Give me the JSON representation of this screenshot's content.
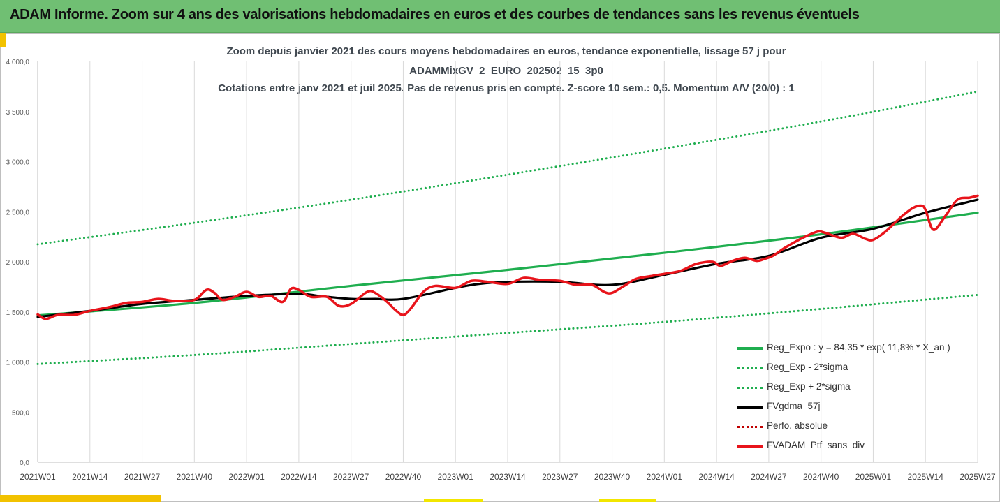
{
  "header": {
    "title": "ADAM Informe. Zoom sur 4 ans des valorisations hebdomadaires en euros et des courbes de tendances sans les revenus éventuels"
  },
  "colors": {
    "header_bg": "#70bf73",
    "regression": "#1fae4f",
    "band": "#1fae4f",
    "moving_average": "#000000",
    "portfolio": "#e8141b",
    "perf_absolue": "#c00000",
    "accent": "#f2c200"
  },
  "chart_data": {
    "type": "line",
    "title_lines": [
      "Zoom depuis janvier 2021 des cours moyens hebdomadaires  en euros, tendance exponentielle, lissage 57 j pour",
      "ADAMMixGV_2_EURO_202502_15_3p0",
      "Cotations entre janv 2021 et juil 2025. Pas de revenus pris en compte. Z-score 10 sem.: 0,5. Momentum A/V (20/0) : 1"
    ],
    "ylim": [
      0,
      4000
    ],
    "y_ticks": [
      "0,0",
      "500,0",
      "1 000,0",
      "1 500,0",
      "2 000,0",
      "2 500,0",
      "3 000,0",
      "3 500,0",
      "4 000,0"
    ],
    "x_ticks": [
      "2021W01",
      "2021W14",
      "2021W27",
      "2021W40",
      "2022W01",
      "2022W14",
      "2022W27",
      "2022W40",
      "2023W01",
      "2023W14",
      "2023W27",
      "2023W40",
      "2024W01",
      "2024W14",
      "2024W27",
      "2024W40",
      "2025W01",
      "2025W14",
      "2025W27"
    ],
    "legend_position": "bottom-right",
    "grid": "vertical",
    "series": [
      {
        "name": "Reg_Expo : y = 84,35 * exp( 11,8% *  X_an )",
        "style": "solid",
        "color": "#1fae4f",
        "x": [
          "2021W01",
          "2021W40",
          "2022W27",
          "2023W14",
          "2024W01",
          "2024W40",
          "2025W27"
        ],
        "values": [
          1465,
          1590,
          1760,
          1920,
          2090,
          2275,
          2490
        ]
      },
      {
        "name": "Reg_Exp - 2*sigma",
        "style": "dotted",
        "color": "#1fae4f",
        "x": [
          "2021W01",
          "2021W40",
          "2022W27",
          "2023W14",
          "2024W01",
          "2024W40",
          "2025W27"
        ],
        "values": [
          980,
          1070,
          1180,
          1290,
          1400,
          1530,
          1670
        ]
      },
      {
        "name": "Reg_Exp + 2*sigma",
        "style": "dotted",
        "color": "#1fae4f",
        "x": [
          "2021W01",
          "2021W40",
          "2022W27",
          "2023W14",
          "2024W01",
          "2024W40",
          "2025W27"
        ],
        "values": [
          2175,
          2390,
          2620,
          2870,
          3130,
          3400,
          3700
        ]
      },
      {
        "name": "FVgdma_57j",
        "style": "solid",
        "color": "#000000",
        "x": [
          "2021W01",
          "2021W14",
          "2021W27",
          "2021W40",
          "2022W01",
          "2022W14",
          "2022W19",
          "2022W27",
          "2022W33",
          "2022W40",
          "2023W01",
          "2023W07",
          "2023W14",
          "2023W27",
          "2023W40",
          "2024W01",
          "2024W14",
          "2024W27",
          "2024W40",
          "2025W01",
          "2025W14",
          "2025W27"
        ],
        "values": [
          1450,
          1510,
          1580,
          1620,
          1660,
          1680,
          1660,
          1630,
          1630,
          1630,
          1740,
          1780,
          1800,
          1800,
          1770,
          1870,
          1980,
          2060,
          2240,
          2330,
          2490,
          2620
        ]
      },
      {
        "name": "Perfo. absolue",
        "style": "dotted",
        "color": "#c00000",
        "x": [],
        "values": []
      },
      {
        "name": "FVADAM_Ptf_sans_div",
        "style": "solid",
        "color": "#e8141b",
        "x": [
          "2021W01",
          "2021W03",
          "2021W06",
          "2021W10",
          "2021W14",
          "2021W19",
          "2021W23",
          "2021W27",
          "2021W31",
          "2021W35",
          "2021W40",
          "2021W43",
          "2021W45",
          "2021W47",
          "2021W50",
          "2022W01",
          "2022W04",
          "2022W07",
          "2022W10",
          "2022W12",
          "2022W14",
          "2022W17",
          "2022W21",
          "2022W24",
          "2022W27",
          "2022W31",
          "2022W33",
          "2022W36",
          "2022W38",
          "2022W40",
          "2022W42",
          "2022W45",
          "2022W48",
          "2023W01",
          "2023W05",
          "2023W09",
          "2023W14",
          "2023W18",
          "2023W22",
          "2023W27",
          "2023W31",
          "2023W35",
          "2023W38",
          "2023W40",
          "2023W43",
          "2023W46",
          "2023W50",
          "2024W01",
          "2024W05",
          "2024W09",
          "2024W13",
          "2024W15",
          "2024W18",
          "2024W21",
          "2024W24",
          "2024W26",
          "2024W28",
          "2024W31",
          "2024W35",
          "2024W39",
          "2024W41",
          "2024W45",
          "2024W48",
          "2024W51",
          "2025W01",
          "2025W04",
          "2025W08",
          "2025W11",
          "2025W13",
          "2025W14",
          "2025W16",
          "2025W19",
          "2025W22",
          "2025W25",
          "2025W27"
        ],
        "values": [
          1475,
          1430,
          1470,
          1470,
          1510,
          1550,
          1590,
          1600,
          1630,
          1610,
          1620,
          1720,
          1690,
          1620,
          1650,
          1700,
          1650,
          1660,
          1600,
          1730,
          1720,
          1650,
          1650,
          1560,
          1580,
          1700,
          1690,
          1600,
          1520,
          1470,
          1540,
          1700,
          1760,
          1740,
          1810,
          1800,
          1780,
          1840,
          1820,
          1810,
          1770,
          1770,
          1700,
          1690,
          1760,
          1830,
          1860,
          1880,
          1910,
          1980,
          2000,
          1960,
          2010,
          2040,
          2010,
          2030,
          2060,
          2140,
          2230,
          2300,
          2290,
          2240,
          2280,
          2230,
          2220,
          2300,
          2450,
          2540,
          2560,
          2520,
          2320,
          2460,
          2620,
          2640,
          2660
        ]
      }
    ]
  }
}
